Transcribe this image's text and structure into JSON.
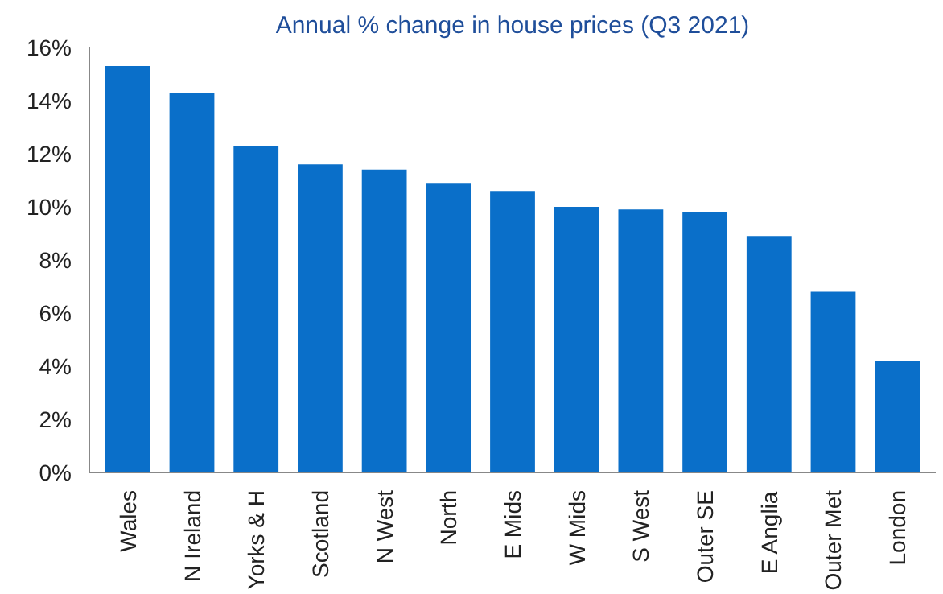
{
  "chart_data": {
    "type": "bar",
    "title": "Annual % change in house prices (Q3 2021)",
    "categories": [
      "Wales",
      "N Ireland",
      "Yorks & H",
      "Scotland",
      "N West",
      "North",
      "E Mids",
      "W Mids",
      "S West",
      "Outer SE",
      "E Anglia",
      "Outer Met",
      "London"
    ],
    "values": [
      15.3,
      14.3,
      12.3,
      11.6,
      11.4,
      10.9,
      10.6,
      10.0,
      9.9,
      9.8,
      8.9,
      6.8,
      4.2
    ],
    "color": "#0a6fc9",
    "ylim": [
      0,
      16
    ],
    "yticks": [
      {
        "value": 0,
        "label": "0%"
      },
      {
        "value": 2,
        "label": "2%"
      },
      {
        "value": 4,
        "label": "4%"
      },
      {
        "value": 6,
        "label": "6%"
      },
      {
        "value": 8,
        "label": "8%"
      },
      {
        "value": 10,
        "label": "10%"
      },
      {
        "value": 12,
        "label": "12%"
      },
      {
        "value": 14,
        "label": "14%"
      },
      {
        "value": 16,
        "label": "16%"
      }
    ],
    "grid": false
  }
}
